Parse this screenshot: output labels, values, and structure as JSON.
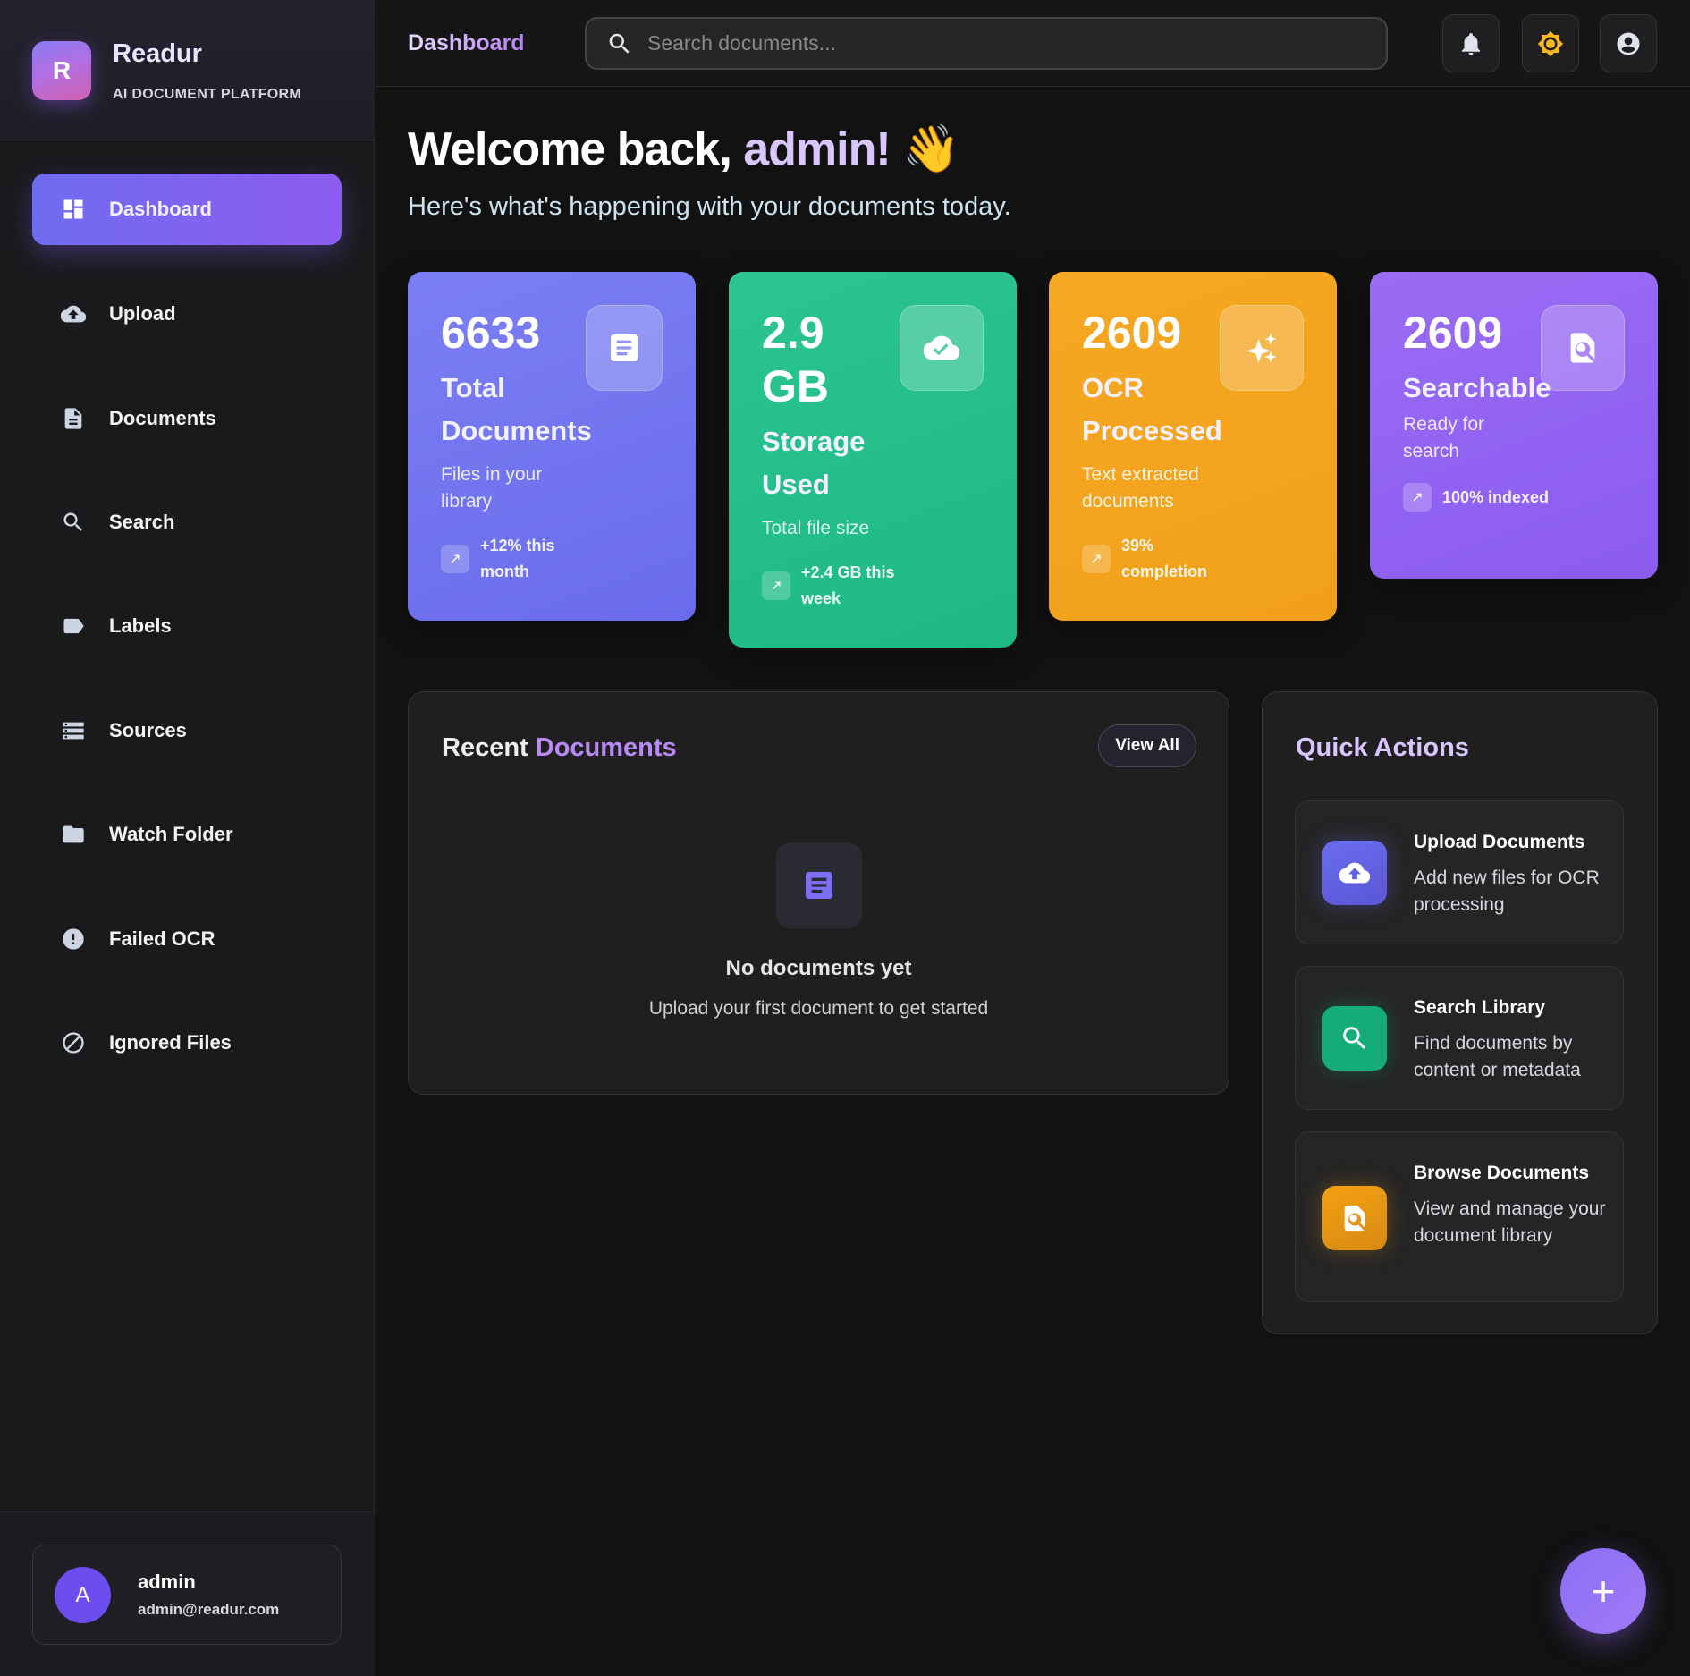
{
  "brand": {
    "name": "Readur",
    "tagline": "AI DOCUMENT PLATFORM",
    "logo_letter": "R"
  },
  "sidebar": {
    "items": [
      {
        "label": "Dashboard",
        "icon": "dashboard-icon",
        "active": true
      },
      {
        "label": "Upload",
        "icon": "cloud-upload-icon"
      },
      {
        "label": "Documents",
        "icon": "document-icon"
      },
      {
        "label": "Search",
        "icon": "search-icon"
      },
      {
        "label": "Labels",
        "icon": "label-icon"
      },
      {
        "label": "Sources",
        "icon": "storage-list-icon"
      },
      {
        "label": "Watch Folder",
        "icon": "folder-icon"
      },
      {
        "label": "Failed OCR",
        "icon": "error-icon"
      },
      {
        "label": "Ignored Files",
        "icon": "block-icon"
      }
    ]
  },
  "user": {
    "initial": "A",
    "name": "admin",
    "email": "admin@readur.com"
  },
  "header": {
    "breadcrumb": "Dashboard",
    "search_placeholder": "Search documents..."
  },
  "welcome": {
    "prefix": "Welcome back, ",
    "name": "admin!",
    "emoji": "👋",
    "subtitle": "Here's what's happening with your documents today."
  },
  "stats": [
    {
      "value": "6633",
      "label": "Total Documents",
      "desc": "Files in your library",
      "trend": "+12% this month",
      "color": "#6f73f0",
      "icon": "document-icon"
    },
    {
      "value": "2.9 GB",
      "label": "Storage Used",
      "desc": "Total file size",
      "trend": "+2.4 GB this week",
      "color": "#22bd88",
      "icon": "cloud-done-icon"
    },
    {
      "value": "2609",
      "label": "OCR Processed",
      "desc": "Text extracted documents",
      "trend": "39% completion",
      "color": "#f4a521",
      "icon": "sparkle-icon"
    },
    {
      "value": "2609",
      "label": "Searchable",
      "desc": "Ready for search",
      "trend": "100% indexed",
      "color": "#9366f2",
      "icon": "find-in-page-icon"
    }
  ],
  "recent": {
    "title_a": "Recent ",
    "title_b": "Documents",
    "view_all": "View All",
    "empty_title": "No documents yet",
    "empty_subtitle": "Upload your first document to get started"
  },
  "quick_actions": {
    "title": "Quick Actions",
    "items": [
      {
        "title": "Upload Documents",
        "desc": "Add new files for OCR processing",
        "color": "#6366f1"
      },
      {
        "title": "Search Library",
        "desc": "Find documents by content or metadata",
        "color": "#10b981"
      },
      {
        "title": "Browse Documents",
        "desc": "View and manage your document library",
        "color": "#f59e0b"
      }
    ]
  },
  "fab": {
    "label": "+"
  }
}
